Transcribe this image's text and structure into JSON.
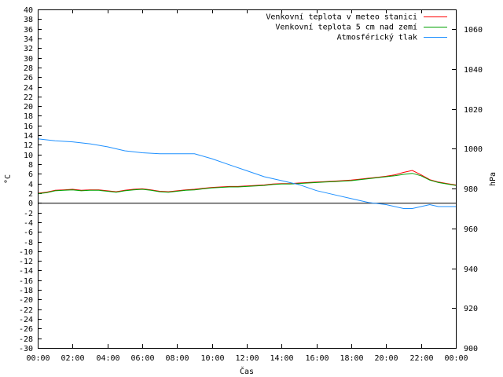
{
  "chart_data": {
    "type": "line",
    "xlabel": "Čas",
    "ylabel_left": "°C",
    "ylabel_right": "hPa",
    "x_ticks": [
      "00:00",
      "02:00",
      "04:00",
      "06:00",
      "08:00",
      "10:00",
      "12:00",
      "14:00",
      "16:00",
      "18:00",
      "20:00",
      "22:00",
      "00:00"
    ],
    "x_range_hours": [
      0,
      24
    ],
    "y_left_range": [
      -30,
      40
    ],
    "y_left_ticks": [
      -30,
      -28,
      -26,
      -24,
      -22,
      -20,
      -18,
      -16,
      -14,
      -12,
      -10,
      -8,
      -6,
      -4,
      -2,
      0,
      2,
      4,
      6,
      8,
      10,
      12,
      14,
      16,
      18,
      20,
      22,
      24,
      26,
      28,
      30,
      32,
      34,
      36,
      38,
      40
    ],
    "y_right_range": [
      900,
      1070
    ],
    "y_right_ticks": [
      900,
      920,
      940,
      960,
      980,
      1000,
      1020,
      1040,
      1060
    ],
    "zero_line": true,
    "legend_position": "top-right",
    "series": [
      {
        "name": "Venkovní teplota v meteo stanici",
        "color": "#ff0000",
        "axis": "left",
        "x": [
          0,
          0.5,
          1,
          1.5,
          2,
          2.5,
          3,
          3.5,
          4,
          4.5,
          5,
          5.5,
          6,
          6.5,
          7,
          7.5,
          8,
          8.5,
          9,
          9.5,
          10,
          10.5,
          11,
          11.5,
          12,
          12.5,
          13,
          13.5,
          14,
          14.5,
          15,
          15.5,
          16,
          16.5,
          17,
          17.5,
          18,
          18.5,
          19,
          19.5,
          20,
          20.5,
          21,
          21.5,
          22,
          22.5,
          23,
          23.5,
          24
        ],
        "values": [
          2.0,
          2.2,
          2.6,
          2.7,
          2.8,
          2.6,
          2.7,
          2.7,
          2.5,
          2.3,
          2.6,
          2.8,
          2.9,
          2.7,
          2.4,
          2.3,
          2.5,
          2.7,
          2.8,
          3.0,
          3.2,
          3.3,
          3.4,
          3.4,
          3.5,
          3.6,
          3.7,
          3.9,
          4.0,
          4.0,
          4.1,
          4.2,
          4.3,
          4.4,
          4.5,
          4.6,
          4.7,
          4.9,
          5.1,
          5.3,
          5.5,
          5.8,
          6.3,
          6.7,
          5.8,
          4.8,
          4.3,
          4.0,
          3.7
        ]
      },
      {
        "name": "Venkovní teplota 5 cm nad zemí",
        "color": "#00a000",
        "axis": "left",
        "x": [
          0,
          0.5,
          1,
          1.5,
          2,
          2.5,
          3,
          3.5,
          4,
          4.5,
          5,
          5.5,
          6,
          6.5,
          7,
          7.5,
          8,
          8.5,
          9,
          9.5,
          10,
          10.5,
          11,
          11.5,
          12,
          12.5,
          13,
          13.5,
          14,
          14.5,
          15,
          15.5,
          16,
          16.5,
          17,
          17.5,
          18,
          18.5,
          19,
          19.5,
          20,
          20.5,
          21,
          21.5,
          22,
          22.5,
          23,
          23.5,
          24
        ],
        "values": [
          1.9,
          2.1,
          2.5,
          2.6,
          2.7,
          2.5,
          2.6,
          2.6,
          2.4,
          2.2,
          2.5,
          2.7,
          2.8,
          2.6,
          2.3,
          2.2,
          2.4,
          2.6,
          2.7,
          2.9,
          3.1,
          3.2,
          3.3,
          3.3,
          3.4,
          3.5,
          3.6,
          3.8,
          3.9,
          3.9,
          4.0,
          4.1,
          4.2,
          4.3,
          4.4,
          4.5,
          4.6,
          4.8,
          5.0,
          5.2,
          5.4,
          5.6,
          5.9,
          6.1,
          5.6,
          4.7,
          4.2,
          3.9,
          3.6
        ]
      },
      {
        "name": "Atmosférický tlak",
        "color": "#1e90ff",
        "axis": "right",
        "x": [
          0,
          1,
          2,
          3,
          4,
          5,
          6,
          7,
          8,
          9,
          10,
          11,
          12,
          13,
          14,
          15,
          16,
          17,
          18,
          19,
          20,
          21,
          21.5,
          22,
          22.5,
          23,
          24
        ],
        "values": [
          1005,
          1004,
          1003.5,
          1002.5,
          1001,
          999,
          998,
          997.5,
          997.5,
          997.5,
          995,
          992,
          989,
          986,
          984,
          982,
          979,
          977,
          975,
          973,
          972,
          970,
          970,
          971,
          972,
          971,
          971
        ]
      }
    ]
  }
}
